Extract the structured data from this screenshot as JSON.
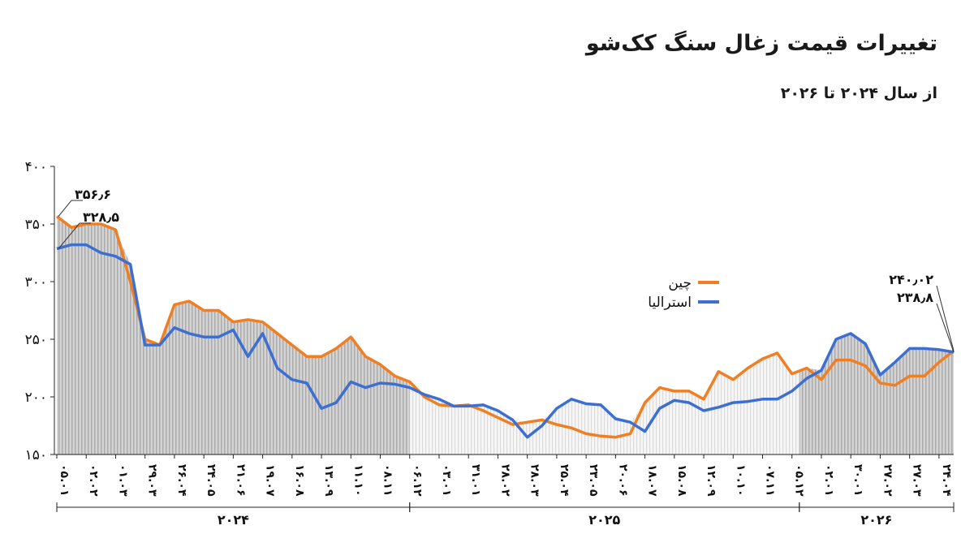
{
  "chart_data": {
    "type": "line",
    "title": "تغییرات قیمت زغال سنگ کک‌شو",
    "subtitle": "از سال ۲۰۲۴ تا ۲۰۲۶",
    "categories": [
      "۰۵.۰۱",
      null,
      "۰۲.۰۲",
      null,
      "۰۱.۰۳",
      null,
      "۲۹.۰۳",
      null,
      "۲۶.۰۴",
      null,
      "۲۴.۰۵",
      null,
      "۲۱.۰۶",
      null,
      "۱۹.۰۷",
      null,
      "۱۶.۰۸",
      null,
      "۱۳.۰۹",
      null,
      "۱۱.۱۰",
      null,
      "۰۸.۱۱",
      null,
      "۰۶.۱۲",
      null,
      "۰۳.۰۱",
      null,
      "۳۱.۰۱",
      null,
      "۲۸.۰۲",
      null,
      "۲۸.۰۳",
      null,
      "۲۵.۰۴",
      null,
      "۲۳.۰۵",
      null,
      "۲۰.۰۶",
      null,
      "۱۸.۰۷",
      null,
      "۱۵.۰۸",
      null,
      "۱۲.۰۹",
      null,
      "۱۰.۱۰",
      null,
      "۰۷.۱۱",
      null,
      "۰۵.۱۲",
      null,
      "۰۲.۰۱",
      null,
      "۳۰.۰۱",
      null,
      "۲۷.۰۲",
      null,
      "۲۷.۰۳",
      null,
      "۲۴.۰۴",
      null
    ],
    "years": [
      {
        "label": "۲۰۲۴",
        "from": 0,
        "to": 24
      },
      {
        "label": "۲۰۲۵",
        "from": 24,
        "to": 50.5
      },
      {
        "label": "۲۰۲۶",
        "from": 50.5,
        "to": 61
      }
    ],
    "series": [
      {
        "name": "چین",
        "color": "#f07f23",
        "values": [
          356.6,
          347,
          350,
          350,
          345,
          300,
          250,
          245,
          280,
          283,
          275,
          275,
          265,
          267,
          265,
          255,
          245,
          235,
          235,
          242,
          252,
          235,
          228,
          218,
          213,
          200,
          193,
          192,
          193,
          188,
          182,
          176,
          178,
          180,
          176,
          173,
          168,
          166,
          165,
          168,
          195,
          208,
          205,
          205,
          198,
          222,
          215,
          225,
          233,
          238,
          220,
          225,
          215,
          232,
          232,
          227,
          212,
          210,
          218,
          218,
          230,
          240.02
        ],
        "value_labels": [
          "۳۵۶٫۶",
          null,
          null,
          null,
          null,
          null,
          null,
          null,
          null,
          null,
          null,
          null,
          null,
          null,
          null,
          null,
          null,
          null,
          null,
          null,
          null,
          null,
          null,
          null,
          null,
          null,
          null,
          null,
          null,
          null,
          null,
          null,
          null,
          null,
          null,
          null,
          null,
          null,
          null,
          null,
          null,
          null,
          null,
          null,
          null,
          null,
          null,
          null,
          null,
          null,
          null,
          null,
          null,
          null,
          null,
          null,
          null,
          null,
          null,
          null,
          null,
          "۲۴۰٫۰۲"
        ]
      },
      {
        "name": "استرالیا",
        "color": "#3d6fd1",
        "values": [
          328.5,
          332,
          332,
          325,
          322,
          315,
          245,
          245,
          260,
          255,
          252,
          252,
          258,
          235,
          255,
          225,
          215,
          212,
          190,
          195,
          213,
          208,
          212,
          211,
          208,
          202,
          198,
          192,
          192,
          193,
          188,
          180,
          165,
          175,
          190,
          198,
          194,
          193,
          181,
          178,
          170,
          190,
          197,
          195,
          188,
          191,
          195,
          196,
          198,
          198,
          205,
          216,
          223,
          250,
          255,
          246,
          219,
          230,
          242,
          242,
          241,
          238.8
        ],
        "value_labels": [
          "۳۲۸٫۵",
          null,
          null,
          null,
          null,
          null,
          null,
          null,
          null,
          null,
          null,
          null,
          null,
          null,
          null,
          null,
          null,
          null,
          null,
          null,
          null,
          null,
          null,
          null,
          null,
          null,
          null,
          null,
          null,
          null,
          null,
          null,
          null,
          null,
          null,
          null,
          null,
          null,
          null,
          null,
          null,
          null,
          null,
          null,
          null,
          null,
          null,
          null,
          null,
          null,
          null,
          null,
          null,
          null,
          null,
          null,
          null,
          null,
          null,
          null,
          null,
          "۲۳۸٫۸"
        ]
      }
    ],
    "ylim": [
      150,
      400
    ],
    "yticks": [
      {
        "value": 150,
        "label": "۱۵۰"
      },
      {
        "value": 200,
        "label": "۲۰۰"
      },
      {
        "value": 250,
        "label": "۲۵۰"
      },
      {
        "value": 300,
        "label": "۳۰۰"
      },
      {
        "value": 350,
        "label": "۳۵۰"
      },
      {
        "value": 400,
        "label": "۴۰۰"
      }
    ],
    "legend": "upper-right"
  }
}
